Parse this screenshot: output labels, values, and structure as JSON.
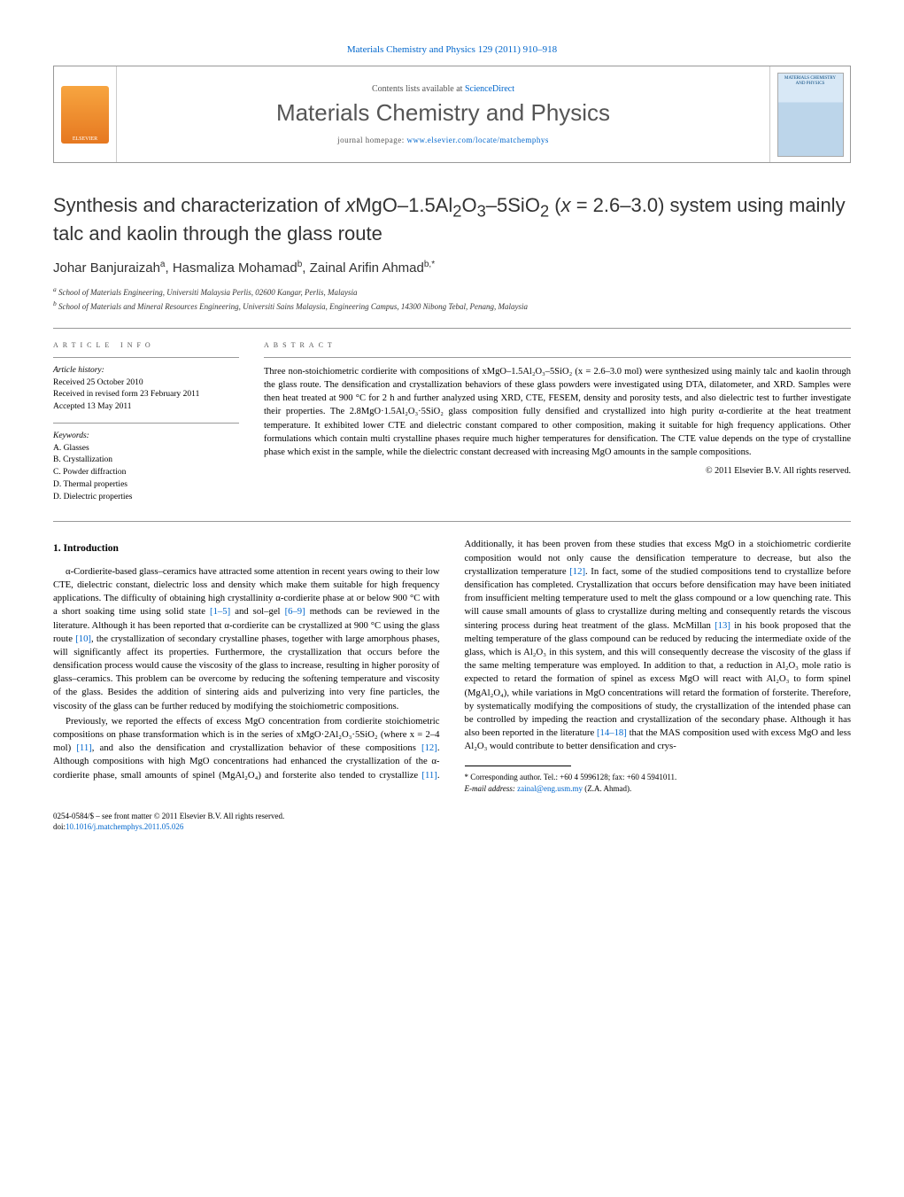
{
  "journal_top": "Materials Chemistry and Physics 129 (2011) 910–918",
  "header": {
    "contents_prefix": "Contents lists available at ",
    "contents_link": "ScienceDirect",
    "journal_title": "Materials Chemistry and Physics",
    "homepage_prefix": "journal homepage: ",
    "homepage_link": "www.elsevier.com/locate/matchemphys",
    "publisher_logo_text": "ELSEVIER",
    "cover_text": "MATERIALS CHEMISTRY AND PHYSICS"
  },
  "title_parts": {
    "p1": "Synthesis and characterization of ",
    "p2": "x",
    "p3": "MgO–1.5Al",
    "p4": "2",
    "p5": "O",
    "p6": "3",
    "p7": "–5SiO",
    "p8": "2",
    "p9": " (",
    "p10": "x",
    "p11": " = 2.6–3.0) system using mainly talc and kaolin through the glass route"
  },
  "authors": {
    "a1": "Johar Banjuraizah",
    "a1_aff": "a",
    "a2": "Hasmaliza Mohamad",
    "a2_aff": "b",
    "a3": "Zainal Arifin Ahmad",
    "a3_aff": "b,",
    "a3_corr": "*"
  },
  "affiliations": {
    "a": "School of Materials Engineering, Universiti Malaysia Perlis, 02600 Kangar, Perlis, Malaysia",
    "b": "School of Materials and Mineral Resources Engineering, Universiti Sains Malaysia, Engineering Campus, 14300 Nibong Tebal, Penang, Malaysia"
  },
  "article_info": {
    "header": "article info",
    "history_label": "Article history:",
    "received": "Received 25 October 2010",
    "revised": "Received in revised form 23 February 2011",
    "accepted": "Accepted 13 May 2011",
    "keywords_label": "Keywords:",
    "kw1": "A. Glasses",
    "kw2": "B. Crystallization",
    "kw3": "C. Powder diffraction",
    "kw4": "D. Thermal properties",
    "kw5": "D. Dielectric properties"
  },
  "abstract": {
    "header": "abstract",
    "text": "Three non-stoichiometric cordierite with compositions of xMgO–1.5Al₂O₃–5SiO₂ (x = 2.6–3.0 mol) were synthesized using mainly talc and kaolin through the glass route. The densification and crystallization behaviors of these glass powders were investigated using DTA, dilatometer, and XRD. Samples were then heat treated at 900 °C for 2 h and further analyzed using XRD, CTE, FESEM, density and porosity tests, and also dielectric test to further investigate their properties. The 2.8MgO·1.5Al₂O₃·5SiO₂ glass composition fully densified and crystallized into high purity α-cordierite at the heat treatment temperature. It exhibited lower CTE and dielectric constant compared to other composition, making it suitable for high frequency applications. Other formulations which contain multi crystalline phases require much higher temperatures for densification. The CTE value depends on the type of crystalline phase which exist in the sample, while the dielectric constant decreased with increasing MgO amounts in the sample compositions.",
    "copyright": "© 2011 Elsevier B.V. All rights reserved."
  },
  "body": {
    "heading1": "1. Introduction",
    "para1a": "α-Cordierite-based glass–ceramics have attracted some attention in recent years owing to their low CTE, dielectric constant, dielectric loss and density which make them suitable for high frequency applications. The difficulty of obtaining high crystallinity α-cordierite phase at or below 900 °C with a short soaking time using solid state ",
    "ref1": "[1–5]",
    "para1b": " and sol–gel ",
    "ref2": "[6–9]",
    "para1c": " methods can be reviewed in the literature. Although it has been reported that α-cordierite can be crystallized at 900 °C using the glass route ",
    "ref3": "[10]",
    "para1d": ", the crystallization of secondary crystalline phases, together with large amorphous phases, will significantly affect its properties. Furthermore, the crystallization that occurs before the densification process would cause the viscosity of the glass to increase, resulting in higher porosity of glass–ceramics. This problem can be overcome by reducing the softening temperature and viscosity of the glass. Besides the addition of sintering aids and pulverizing into very fine particles, the viscosity of the glass can be further reduced by modifying the stoichiometric compositions.",
    "para2a": "Previously, we reported the effects of excess MgO concentration from cordierite stoichiometric compositions on phase transformation which is in the series of xMgO·2Al₂O₃·5SiO₂ (where x = 2–4 mol) ",
    "ref4": "[11]",
    "para2b": ", and also the densification and crystallization",
    "para2c": "behavior of these compositions ",
    "ref5": "[12]",
    "para2d": ". Although compositions with high MgO concentrations had enhanced the crystallization of the α-cordierite phase, small amounts of spinel (MgAl₂O₄) and forsterite also tended to crystallize ",
    "ref6": "[11]",
    "para2e": ". Additionally, it has been proven from these studies that excess MgO in a stoichiometric cordierite composition would not only cause the densification temperature to decrease, but also the crystallization temperature ",
    "ref7": "[12]",
    "para2f": ". In fact, some of the studied compositions tend to crystallize before densification has completed. Crystallization that occurs before densification may have been initiated from insufficient melting temperature used to melt the glass compound or a low quenching rate. This will cause small amounts of glass to crystallize during melting and consequently retards the viscous sintering process during heat treatment of the glass. McMillan ",
    "ref8": "[13]",
    "para2g": " in his book proposed that the melting temperature of the glass compound can be reduced by reducing the intermediate oxide of the glass, which is Al₂O₃ in this system, and this will consequently decrease the viscosity of the glass if the same melting temperature was employed. In addition to that, a reduction in Al₂O₃ mole ratio is expected to retard the formation of spinel as excess MgO will react with Al₂O₃ to form spinel (MgAl₂O₄), while variations in MgO concentrations will retard the formation of forsterite. Therefore, by systematically modifying the compositions of study, the crystallization of the intended phase can be controlled by impeding the reaction and crystallization of the secondary phase. Although it has also been reported in the literature ",
    "ref9": "[14–18]",
    "para2h": " that the MAS composition used with excess MgO and less Al₂O₃ would contribute to better densification and crys-"
  },
  "corresponding": {
    "star": "*",
    "label": " Corresponding author. Tel.: +60 4 5996128; fax: +60 4 5941011.",
    "email_label": "E-mail address: ",
    "email": "zainal@eng.usm.my",
    "email_name": " (Z.A. Ahmad)."
  },
  "footer": {
    "line1": "0254-0584/$ – see front matter © 2011 Elsevier B.V. All rights reserved.",
    "doi_prefix": "doi:",
    "doi": "10.1016/j.matchemphys.2011.05.026"
  },
  "colors": {
    "link": "#0066cc",
    "text": "#000000",
    "header_gray": "#555555",
    "border": "#999999"
  }
}
